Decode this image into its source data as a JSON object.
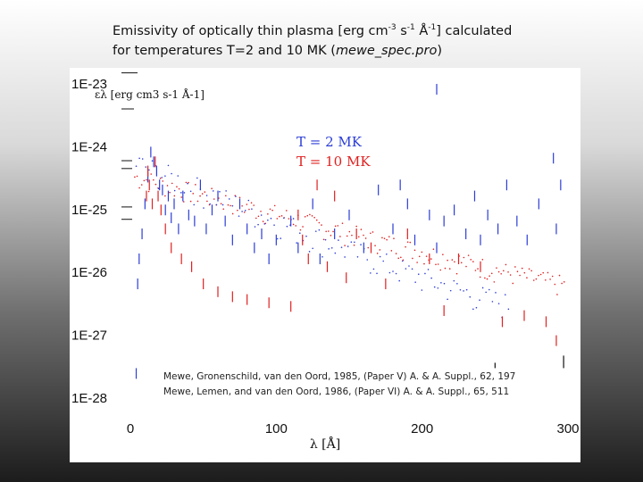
{
  "slide": {
    "title_line1_a": "Emissivity of optically thin plasma [erg cm",
    "title_line1_sup1": "-3",
    "title_line1_b": " s",
    "title_line1_sup2": "-1",
    "title_line1_c": " Å",
    "title_line1_sup3": "-1",
    "title_line1_d": "] calculated",
    "title_line2_a": "for temperatures T=2 and 10 MK (",
    "title_line2_italic": "mewe_spec.pro",
    "title_line2_b": ")"
  },
  "chart_data": {
    "type": "scatter",
    "title": "",
    "xlabel": "λ [Å]",
    "ylabel": "ελ [erg cm3 s-1 Å-1]",
    "y_scale": "log",
    "xlim": [
      0,
      300
    ],
    "ylim": [
      1e-28,
      1e-23
    ],
    "x_ticks": [
      "0",
      "100",
      "200",
      "300"
    ],
    "y_ticks": [
      "1E-23",
      "1E-24",
      "1E-25",
      "1E-26",
      "1E-27",
      "1E-28"
    ],
    "legend": [
      "T = 2 MK",
      "T = 10 MK"
    ],
    "legend_placement": "top-center",
    "series": [
      {
        "name": "T = 2 MK",
        "color": "#2b3dd6",
        "marker": "line"
      },
      {
        "name": "T = 10 MK",
        "color": "#e02020",
        "marker": "line"
      }
    ],
    "lines_2mk": [
      [
        4,
        3e-28
      ],
      [
        5,
        8e-27
      ],
      [
        6,
        2e-26
      ],
      [
        8,
        5e-26
      ],
      [
        10,
        1.5e-25
      ],
      [
        12,
        4e-25
      ],
      [
        14,
        1e-24
      ],
      [
        16,
        7e-25
      ],
      [
        18,
        5e-25
      ],
      [
        20,
        3e-25
      ],
      [
        22,
        2.5e-25
      ],
      [
        24,
        1.2e-25
      ],
      [
        26,
        2e-25
      ],
      [
        28,
        9e-26
      ],
      [
        30,
        1.5e-25
      ],
      [
        33,
        6e-26
      ],
      [
        36,
        2e-25
      ],
      [
        40,
        1e-25
      ],
      [
        44,
        8e-26
      ],
      [
        48,
        3e-25
      ],
      [
        52,
        6e-26
      ],
      [
        56,
        1.2e-25
      ],
      [
        60,
        2e-25
      ],
      [
        65,
        8e-26
      ],
      [
        70,
        4e-26
      ],
      [
        75,
        1.5e-25
      ],
      [
        80,
        6e-26
      ],
      [
        85,
        3e-26
      ],
      [
        90,
        5e-26
      ],
      [
        95,
        2e-26
      ],
      [
        100,
        4e-26
      ],
      [
        110,
        8e-26
      ],
      [
        115,
        3e-26
      ],
      [
        125,
        1.5e-25
      ],
      [
        130,
        2e-26
      ],
      [
        140,
        5e-26
      ],
      [
        150,
        1e-25
      ],
      [
        160,
        3e-26
      ],
      [
        170,
        2.5e-25
      ],
      [
        180,
        6e-26
      ],
      [
        185,
        3e-25
      ],
      [
        190,
        1.5e-25
      ],
      [
        195,
        4e-26
      ],
      [
        205,
        1e-25
      ],
      [
        210,
        3e-26
      ],
      [
        215,
        8e-26
      ],
      [
        222,
        1.2e-25
      ],
      [
        230,
        5e-26
      ],
      [
        236,
        2e-25
      ],
      [
        240,
        4e-26
      ],
      [
        245,
        1e-25
      ],
      [
        252,
        6e-26
      ],
      [
        258,
        3e-25
      ],
      [
        265,
        8e-26
      ],
      [
        272,
        4e-26
      ],
      [
        280,
        1.5e-25
      ],
      [
        290,
        8e-25
      ],
      [
        292,
        6e-26
      ],
      [
        295,
        3e-25
      ],
      [
        210,
        1e-23
      ]
    ],
    "lines_10mk": [
      [
        11,
        2e-25
      ],
      [
        12,
        5e-25
      ],
      [
        13,
        3e-25
      ],
      [
        15,
        1.5e-25
      ],
      [
        17,
        7e-25
      ],
      [
        19,
        2e-25
      ],
      [
        21,
        1.2e-25
      ],
      [
        24,
        6e-26
      ],
      [
        28,
        3e-26
      ],
      [
        35,
        2e-26
      ],
      [
        42,
        1.5e-26
      ],
      [
        50,
        8e-27
      ],
      [
        60,
        6e-27
      ],
      [
        70,
        5e-27
      ],
      [
        80,
        4.5e-27
      ],
      [
        95,
        4e-27
      ],
      [
        110,
        3.5e-27
      ],
      [
        115,
        1e-25
      ],
      [
        118,
        4e-26
      ],
      [
        122,
        2e-26
      ],
      [
        128,
        3e-25
      ],
      [
        135,
        1.5e-26
      ],
      [
        140,
        2e-25
      ],
      [
        148,
        1e-26
      ],
      [
        155,
        5e-26
      ],
      [
        165,
        3e-26
      ],
      [
        175,
        8e-27
      ],
      [
        190,
        5e-26
      ],
      [
        205,
        2e-26
      ],
      [
        215,
        3e-27
      ],
      [
        225,
        2e-26
      ],
      [
        240,
        1.5e-26
      ],
      [
        255,
        2e-27
      ],
      [
        270,
        2.5e-27
      ],
      [
        285,
        2e-27
      ],
      [
        292,
        1e-27
      ]
    ]
  },
  "annotations": {
    "ref_line1": "Mewe, Gronenschild, van den Oord, 1985, (Paper V)  A. & A. Suppl., 62, 197",
    "ref_line2": "Mewe, Lemen, and van den Oord, 1986, (Paper VI) A. & A. Suppl., 65, 511"
  }
}
